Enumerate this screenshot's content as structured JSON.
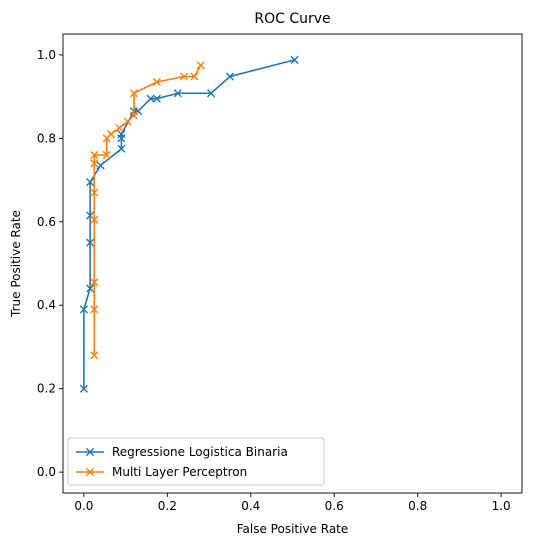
{
  "chart_data": {
    "type": "line",
    "title": "ROC Curve",
    "xlabel": "False Positive Rate",
    "ylabel": "True Positive Rate",
    "xlim": [
      -0.05,
      1.05
    ],
    "ylim": [
      -0.05,
      1.05
    ],
    "xticks": [
      "0.0",
      "0.2",
      "0.4",
      "0.6",
      "0.8",
      "1.0"
    ],
    "yticks": [
      "0.0",
      "0.2",
      "0.4",
      "0.6",
      "0.8",
      "1.0"
    ],
    "grid": false,
    "legend_position": "lower-left",
    "marker": "x",
    "series": [
      {
        "name": "Regressione Logistica Binaria",
        "color": "#1f77b4",
        "points": [
          [
            0.0,
            0.2
          ],
          [
            0.0,
            0.39
          ],
          [
            0.015,
            0.44
          ],
          [
            0.015,
            0.55
          ],
          [
            0.015,
            0.615
          ],
          [
            0.015,
            0.695
          ],
          [
            0.04,
            0.735
          ],
          [
            0.09,
            0.775
          ],
          [
            0.09,
            0.8
          ],
          [
            0.09,
            0.81
          ],
          [
            0.12,
            0.865
          ],
          [
            0.13,
            0.865
          ],
          [
            0.16,
            0.895
          ],
          [
            0.175,
            0.895
          ],
          [
            0.225,
            0.908
          ],
          [
            0.305,
            0.908
          ],
          [
            0.35,
            0.948
          ],
          [
            0.505,
            0.988
          ]
        ]
      },
      {
        "name": "Multi Layer Perceptron",
        "color": "#ff7f0e",
        "points": [
          [
            0.025,
            0.28
          ],
          [
            0.025,
            0.39
          ],
          [
            0.025,
            0.455
          ],
          [
            0.025,
            0.605
          ],
          [
            0.025,
            0.67
          ],
          [
            0.025,
            0.74
          ],
          [
            0.025,
            0.76
          ],
          [
            0.055,
            0.76
          ],
          [
            0.055,
            0.8
          ],
          [
            0.065,
            0.81
          ],
          [
            0.085,
            0.825
          ],
          [
            0.105,
            0.84
          ],
          [
            0.12,
            0.855
          ],
          [
            0.12,
            0.908
          ],
          [
            0.175,
            0.935
          ],
          [
            0.24,
            0.948
          ],
          [
            0.265,
            0.948
          ],
          [
            0.28,
            0.975
          ]
        ]
      }
    ]
  }
}
